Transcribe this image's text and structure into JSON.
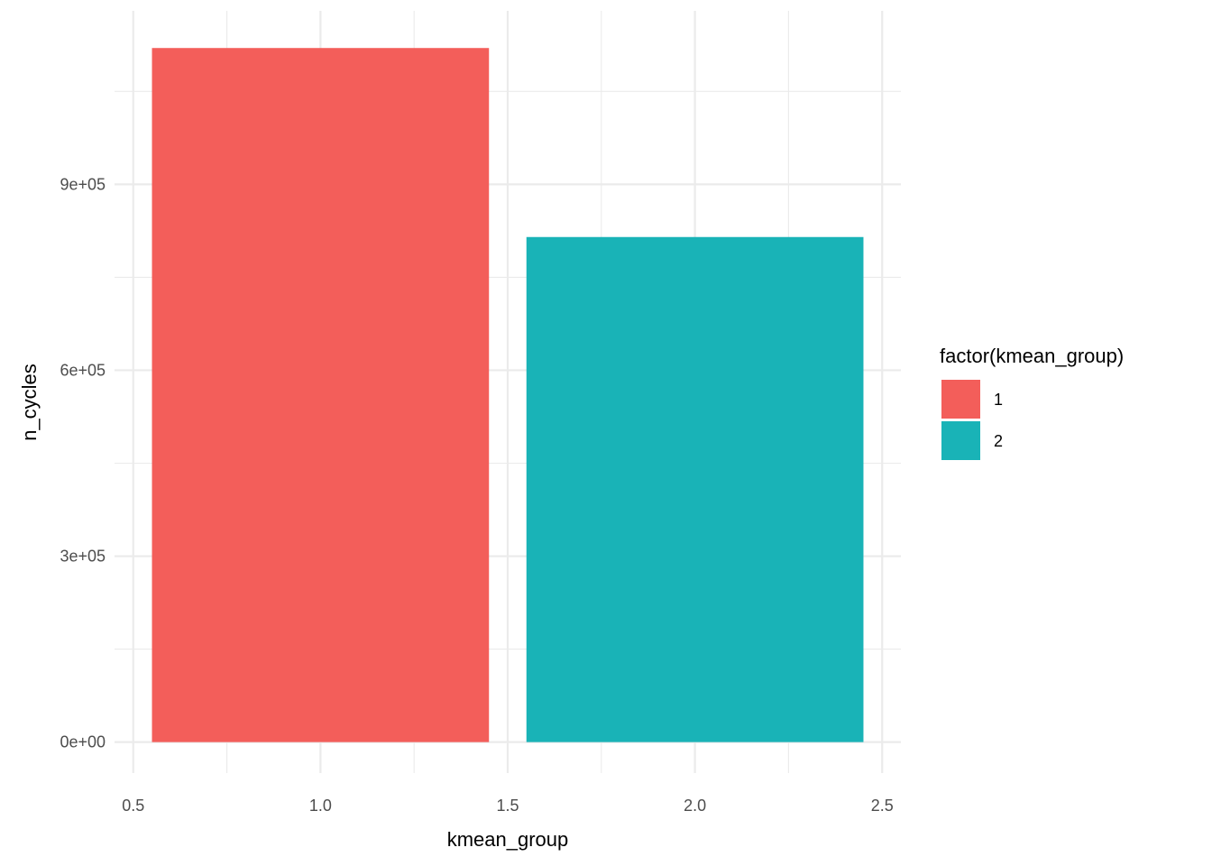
{
  "chart_data": {
    "type": "bar",
    "x": [
      1,
      2
    ],
    "values": [
      1120000,
      815000
    ],
    "bar_width": 0.9,
    "xlabel": "kmean_group",
    "ylabel": "n_cycles",
    "xlim": [
      0.45,
      2.55
    ],
    "ylim": [
      -50000,
      1180000
    ],
    "x_ticks": [
      0.5,
      1.0,
      1.5,
      2.0,
      2.5
    ],
    "x_tick_labels": [
      "0.5",
      "1.0",
      "1.5",
      "2.0",
      "2.5"
    ],
    "y_ticks": [
      0,
      300000,
      600000,
      900000
    ],
    "y_tick_labels": [
      "0e+00",
      "3e+05",
      "6e+05",
      "9e+05"
    ],
    "grid": true,
    "legend": {
      "title": "factor(kmean_group)",
      "position": "right",
      "entries": [
        {
          "label": "1",
          "color": "#F35E5A"
        },
        {
          "label": "2",
          "color": "#19B3B7"
        }
      ]
    },
    "colors": [
      "#F35E5A",
      "#19B3B7"
    ],
    "grid_color": "#EBEBEB"
  }
}
